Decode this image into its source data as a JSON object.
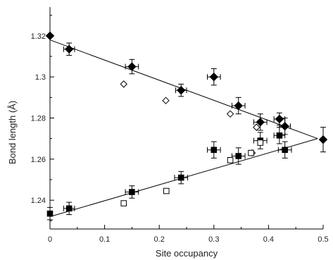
{
  "chart_data": {
    "type": "scatter",
    "xlabel": "Site occupancy",
    "ylabel": "Bond length (Å)",
    "xlim": [
      0,
      0.5
    ],
    "ylim": [
      1.226,
      1.334
    ],
    "xticks": [
      "0",
      "0.1",
      "0.2",
      "0.3",
      "0.4",
      "0.5"
    ],
    "xtick_values": [
      0,
      0.1,
      0.2,
      0.3,
      0.4,
      0.5
    ],
    "yticks": [
      "1.24",
      "1.26",
      "1.28",
      "1.3",
      "1.32"
    ],
    "ytick_values": [
      1.24,
      1.26,
      1.28,
      1.3,
      1.32
    ],
    "grid": false,
    "series": [
      {
        "marker": "filled-diamond",
        "color": "#000000",
        "points": [
          {
            "x": 0.0,
            "y": 1.32
          },
          {
            "x": 0.035,
            "y": 1.3135,
            "xerr": 0.01,
            "yerr": 0.003
          },
          {
            "x": 0.15,
            "y": 1.305,
            "xerr": 0.012,
            "yerr": 0.0035
          },
          {
            "x": 0.24,
            "y": 1.2935,
            "xerr": 0.01,
            "yerr": 0.003
          },
          {
            "x": 0.3,
            "y": 1.3,
            "xerr": 0.012,
            "yerr": 0.004
          },
          {
            "x": 0.345,
            "y": 1.286,
            "xerr": 0.012,
            "yerr": 0.004
          },
          {
            "x": 0.385,
            "y": 1.278,
            "xerr": 0.012,
            "yerr": 0.004
          },
          {
            "x": 0.42,
            "y": 1.2795,
            "xerr": 0.01,
            "yerr": 0.003
          },
          {
            "x": 0.43,
            "y": 1.276,
            "xerr": 0.01,
            "yerr": 0.004
          },
          {
            "x": 0.5,
            "y": 1.2695,
            "yerr": 0.006
          }
        ]
      },
      {
        "marker": "open-diamond",
        "color": "#000000",
        "points": [
          {
            "x": 0.135,
            "y": 1.2965
          },
          {
            "x": 0.212,
            "y": 1.2885
          },
          {
            "x": 0.33,
            "y": 1.282
          },
          {
            "x": 0.37,
            "y": 1.263
          },
          {
            "x": 0.378,
            "y": 1.2755
          }
        ]
      },
      {
        "marker": "filled-square",
        "color": "#000000",
        "points": [
          {
            "x": 0.0,
            "y": 1.2335,
            "yerr": 0.003
          },
          {
            "x": 0.035,
            "y": 1.236,
            "xerr": 0.01,
            "yerr": 0.003
          },
          {
            "x": 0.15,
            "y": 1.244,
            "xerr": 0.012,
            "yerr": 0.003
          },
          {
            "x": 0.24,
            "y": 1.251,
            "xerr": 0.012,
            "yerr": 0.003
          },
          {
            "x": 0.3,
            "y": 1.2645,
            "xerr": 0.012,
            "yerr": 0.004
          },
          {
            "x": 0.345,
            "y": 1.2615,
            "xerr": 0.012,
            "yerr": 0.004
          },
          {
            "x": 0.385,
            "y": 1.269,
            "xerr": 0.012,
            "yerr": 0.004
          },
          {
            "x": 0.42,
            "y": 1.2715,
            "xerr": 0.01,
            "yerr": 0.004
          },
          {
            "x": 0.43,
            "y": 1.2645,
            "xerr": 0.012,
            "yerr": 0.004
          }
        ]
      },
      {
        "marker": "open-square",
        "color": "#000000",
        "points": [
          {
            "x": 0.135,
            "y": 1.2385
          },
          {
            "x": 0.213,
            "y": 1.2445
          },
          {
            "x": 0.33,
            "y": 1.2595
          },
          {
            "x": 0.368,
            "y": 1.263
          },
          {
            "x": 0.385,
            "y": 1.268
          }
        ]
      }
    ],
    "fit_lines": [
      {
        "x": [
          0.0,
          0.49
        ],
        "y": [
          1.318,
          1.27
        ]
      },
      {
        "x": [
          0.0,
          0.49
        ],
        "y": [
          1.232,
          1.27
        ]
      }
    ]
  }
}
